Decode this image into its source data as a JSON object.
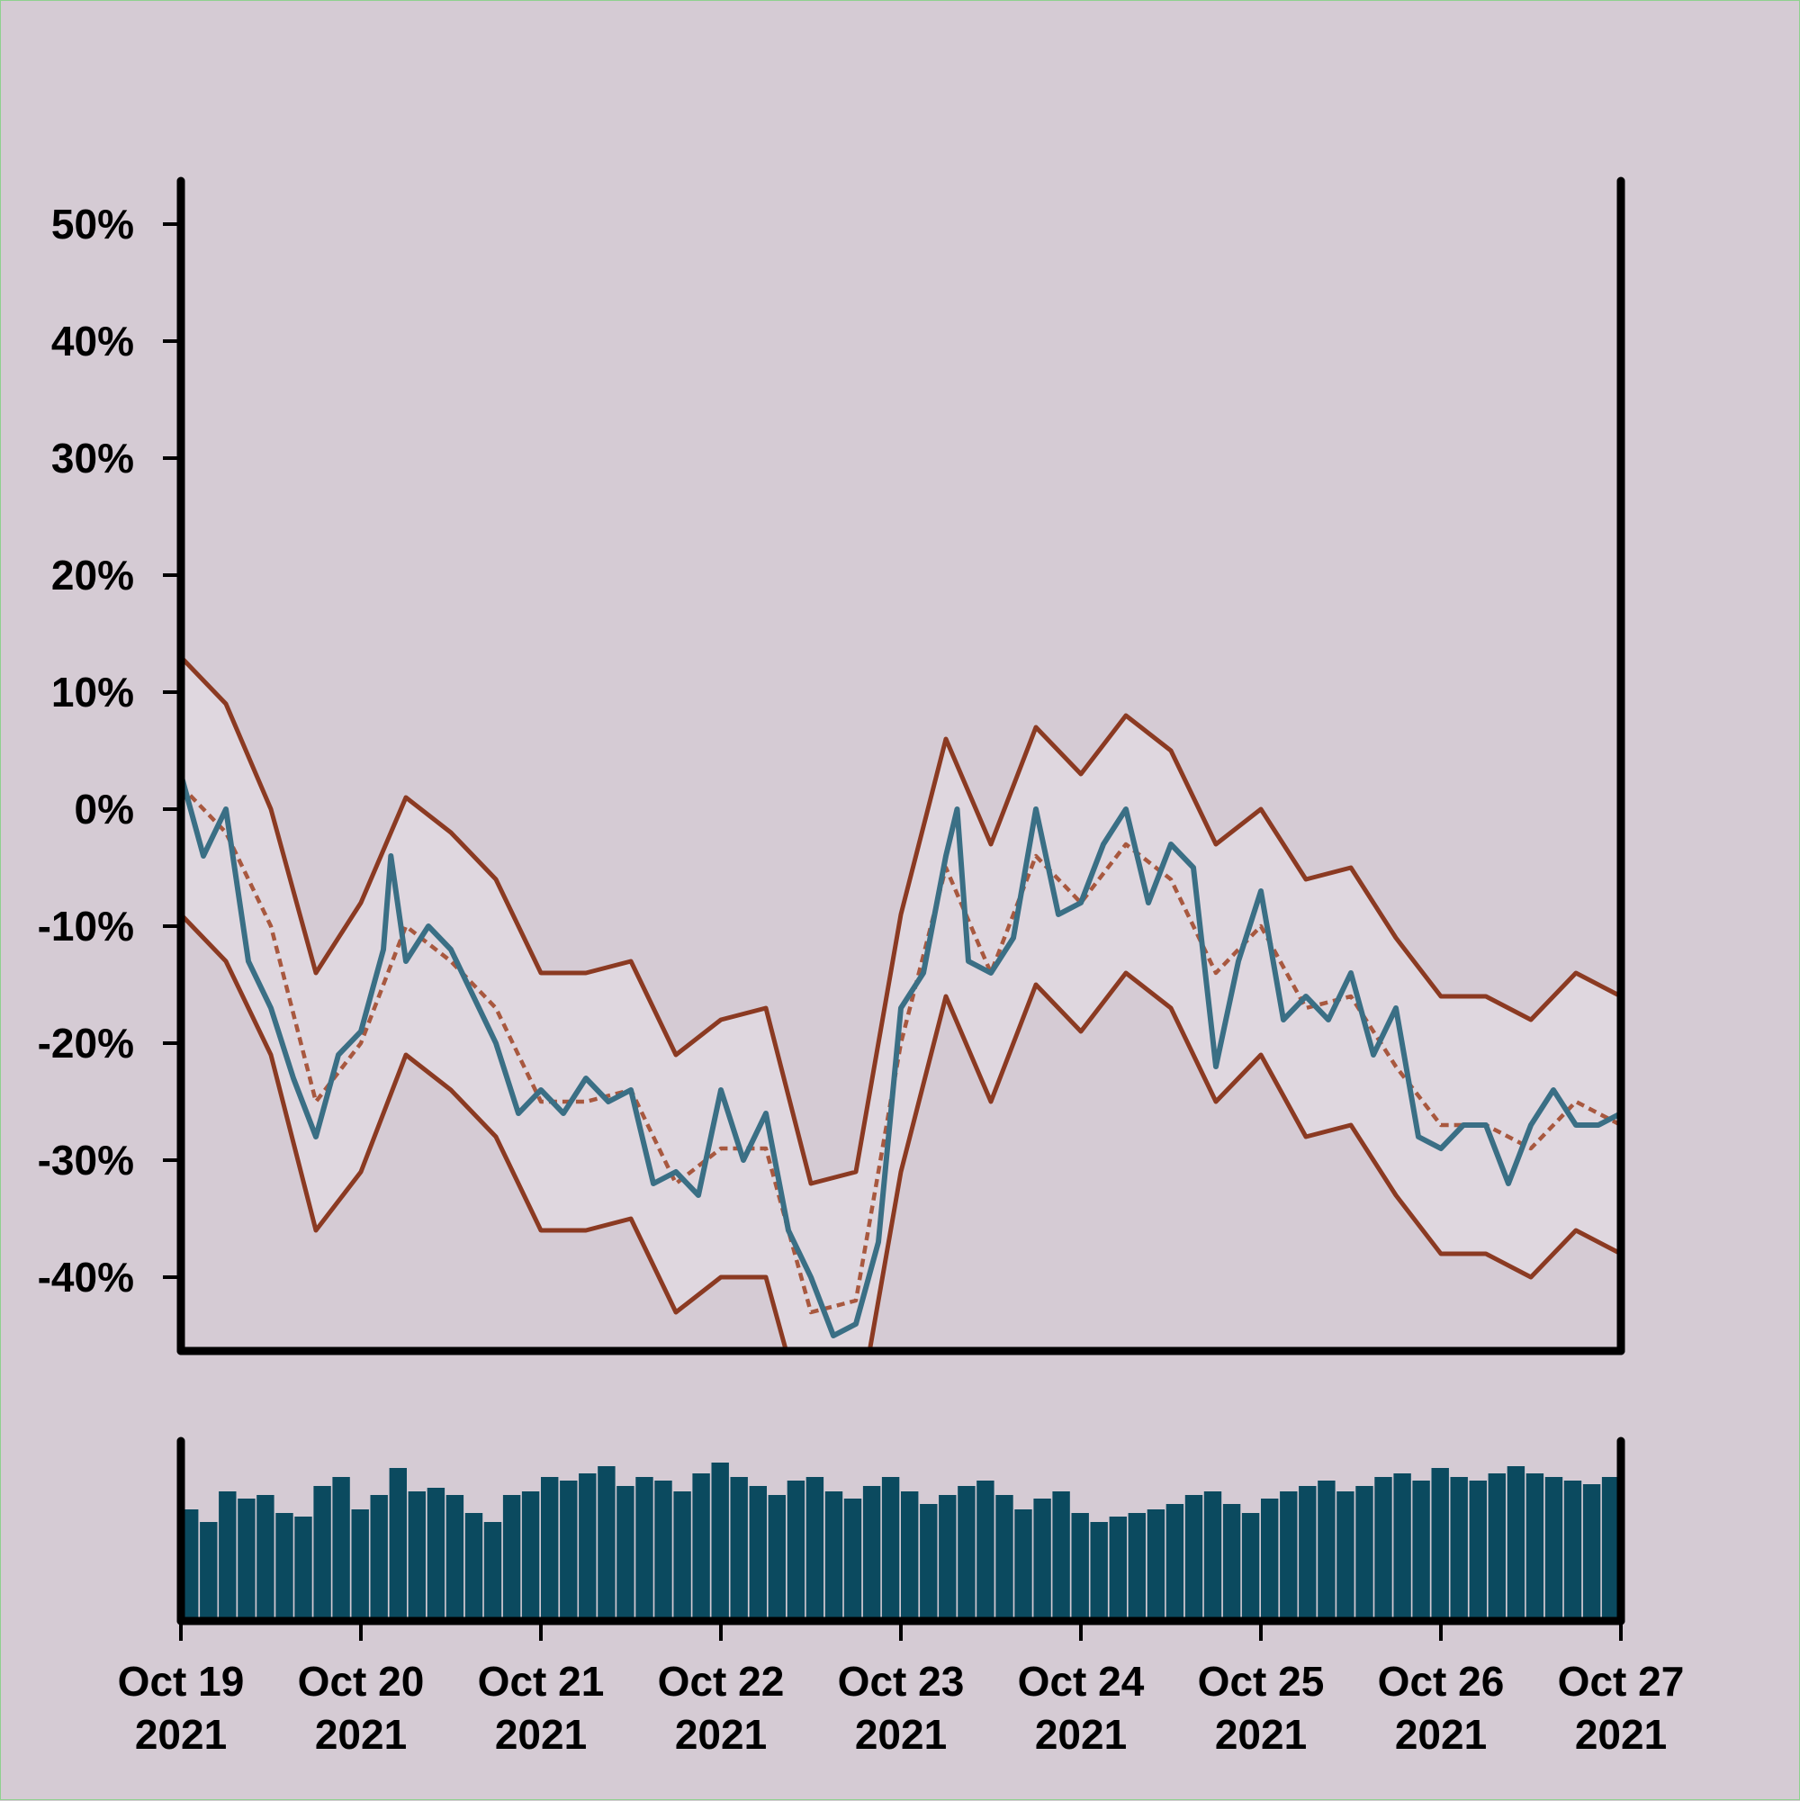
{
  "chart_data": [
    {
      "type": "line",
      "title": "",
      "xlabel": "",
      "ylabel": "",
      "x_range": [
        "2021-10-19",
        "2021-10-27"
      ],
      "ylim": [
        -46,
        54
      ],
      "y_ticks": [
        {
          "value": 50,
          "label": "50%"
        },
        {
          "value": 40,
          "label": "40%"
        },
        {
          "value": 30,
          "label": "30%"
        },
        {
          "value": 20,
          "label": "20%"
        },
        {
          "value": 10,
          "label": "10%"
        },
        {
          "value": 0,
          "label": "0%"
        },
        {
          "value": -10,
          "label": "-10%"
        },
        {
          "value": -20,
          "label": "-20%"
        },
        {
          "value": -30,
          "label": "-30%"
        },
        {
          "value": -40,
          "label": "-40%"
        }
      ],
      "grid": false,
      "legend": "none",
      "colors": {
        "price": "#3a6f85",
        "bands": "#8b3a22",
        "middle": "#a8583f",
        "band_fill": "#e1d9e0"
      },
      "band_points": [
        {
          "x": "2021-10-19T00:00",
          "mid": 2,
          "upper": 13,
          "lower": -9
        },
        {
          "x": "2021-10-19T06:00",
          "mid": -2,
          "upper": 9,
          "lower": -13
        },
        {
          "x": "2021-10-19T12:00",
          "mid": -10,
          "upper": 0,
          "lower": -21
        },
        {
          "x": "2021-10-19T18:00",
          "mid": -25,
          "upper": -14,
          "lower": -36
        },
        {
          "x": "2021-10-20T00:00",
          "mid": -20,
          "upper": -8,
          "lower": -31
        },
        {
          "x": "2021-10-20T06:00",
          "mid": -10,
          "upper": 1,
          "lower": -21
        },
        {
          "x": "2021-10-20T12:00",
          "mid": -13,
          "upper": -2,
          "lower": -24
        },
        {
          "x": "2021-10-20T18:00",
          "mid": -17,
          "upper": -6,
          "lower": -28
        },
        {
          "x": "2021-10-21T00:00",
          "mid": -25,
          "upper": -14,
          "lower": -36
        },
        {
          "x": "2021-10-21T06:00",
          "mid": -25,
          "upper": -14,
          "lower": -36
        },
        {
          "x": "2021-10-21T12:00",
          "mid": -24,
          "upper": -13,
          "lower": -35
        },
        {
          "x": "2021-10-21T18:00",
          "mid": -32,
          "upper": -21,
          "lower": -43
        },
        {
          "x": "2021-10-22T00:00",
          "mid": -29,
          "upper": -18,
          "lower": -40
        },
        {
          "x": "2021-10-22T06:00",
          "mid": -29,
          "upper": -17,
          "lower": -40
        },
        {
          "x": "2021-10-22T12:00",
          "mid": -43,
          "upper": -32,
          "lower": -54
        },
        {
          "x": "2021-10-22T18:00",
          "mid": -42,
          "upper": -31,
          "lower": -53
        },
        {
          "x": "2021-10-23T00:00",
          "mid": -20,
          "upper": -9,
          "lower": -31
        },
        {
          "x": "2021-10-23T06:00",
          "mid": -5,
          "upper": 6,
          "lower": -16
        },
        {
          "x": "2021-10-23T12:00",
          "mid": -14,
          "upper": -3,
          "lower": -25
        },
        {
          "x": "2021-10-23T18:00",
          "mid": -4,
          "upper": 7,
          "lower": -15
        },
        {
          "x": "2021-10-24T00:00",
          "mid": -8,
          "upper": 3,
          "lower": -19
        },
        {
          "x": "2021-10-24T06:00",
          "mid": -3,
          "upper": 8,
          "lower": -14
        },
        {
          "x": "2021-10-24T12:00",
          "mid": -6,
          "upper": 5,
          "lower": -17
        },
        {
          "x": "2021-10-24T18:00",
          "mid": -14,
          "upper": -3,
          "lower": -25
        },
        {
          "x": "2021-10-25T00:00",
          "mid": -10,
          "upper": 0,
          "lower": -21
        },
        {
          "x": "2021-10-25T06:00",
          "mid": -17,
          "upper": -6,
          "lower": -28
        },
        {
          "x": "2021-10-25T12:00",
          "mid": -16,
          "upper": -5,
          "lower": -27
        },
        {
          "x": "2021-10-25T18:00",
          "mid": -22,
          "upper": -11,
          "lower": -33
        },
        {
          "x": "2021-10-26T00:00",
          "mid": -27,
          "upper": -16,
          "lower": -38
        },
        {
          "x": "2021-10-26T06:00",
          "mid": -27,
          "upper": -16,
          "lower": -38
        },
        {
          "x": "2021-10-26T12:00",
          "mid": -29,
          "upper": -18,
          "lower": -40
        },
        {
          "x": "2021-10-26T18:00",
          "mid": -25,
          "upper": -14,
          "lower": -36
        },
        {
          "x": "2021-10-27T00:00",
          "mid": -27,
          "upper": -16,
          "lower": -38
        }
      ],
      "price_points": [
        {
          "x": "2021-10-19T00:00",
          "y": 3
        },
        {
          "x": "2021-10-19T03:00",
          "y": -4
        },
        {
          "x": "2021-10-19T06:00",
          "y": 0
        },
        {
          "x": "2021-10-19T09:00",
          "y": -13
        },
        {
          "x": "2021-10-19T12:00",
          "y": -17
        },
        {
          "x": "2021-10-19T15:00",
          "y": -23
        },
        {
          "x": "2021-10-19T18:00",
          "y": -28
        },
        {
          "x": "2021-10-19T21:00",
          "y": -21
        },
        {
          "x": "2021-10-20T00:00",
          "y": -19
        },
        {
          "x": "2021-10-20T03:00",
          "y": -12
        },
        {
          "x": "2021-10-20T04:00",
          "y": -4
        },
        {
          "x": "2021-10-20T06:00",
          "y": -13
        },
        {
          "x": "2021-10-20T09:00",
          "y": -10
        },
        {
          "x": "2021-10-20T12:00",
          "y": -12
        },
        {
          "x": "2021-10-20T15:00",
          "y": -16
        },
        {
          "x": "2021-10-20T18:00",
          "y": -20
        },
        {
          "x": "2021-10-20T21:00",
          "y": -26
        },
        {
          "x": "2021-10-21T00:00",
          "y": -24
        },
        {
          "x": "2021-10-21T03:00",
          "y": -26
        },
        {
          "x": "2021-10-21T06:00",
          "y": -23
        },
        {
          "x": "2021-10-21T09:00",
          "y": -25
        },
        {
          "x": "2021-10-21T12:00",
          "y": -24
        },
        {
          "x": "2021-10-21T15:00",
          "y": -32
        },
        {
          "x": "2021-10-21T18:00",
          "y": -31
        },
        {
          "x": "2021-10-21T21:00",
          "y": -33
        },
        {
          "x": "2021-10-22T00:00",
          "y": -24
        },
        {
          "x": "2021-10-22T03:00",
          "y": -30
        },
        {
          "x": "2021-10-22T06:00",
          "y": -26
        },
        {
          "x": "2021-10-22T09:00",
          "y": -36
        },
        {
          "x": "2021-10-22T12:00",
          "y": -40
        },
        {
          "x": "2021-10-22T15:00",
          "y": -45
        },
        {
          "x": "2021-10-22T18:00",
          "y": -44
        },
        {
          "x": "2021-10-22T21:00",
          "y": -37
        },
        {
          "x": "2021-10-23T00:00",
          "y": -17
        },
        {
          "x": "2021-10-23T03:00",
          "y": -14
        },
        {
          "x": "2021-10-23T06:00",
          "y": -4
        },
        {
          "x": "2021-10-23T07:30",
          "y": 0
        },
        {
          "x": "2021-10-23T09:00",
          "y": -13
        },
        {
          "x": "2021-10-23T12:00",
          "y": -14
        },
        {
          "x": "2021-10-23T15:00",
          "y": -11
        },
        {
          "x": "2021-10-23T18:00",
          "y": 0
        },
        {
          "x": "2021-10-23T21:00",
          "y": -9
        },
        {
          "x": "2021-10-24T00:00",
          "y": -8
        },
        {
          "x": "2021-10-24T03:00",
          "y": -3
        },
        {
          "x": "2021-10-24T06:00",
          "y": 0
        },
        {
          "x": "2021-10-24T09:00",
          "y": -8
        },
        {
          "x": "2021-10-24T12:00",
          "y": -3
        },
        {
          "x": "2021-10-24T15:00",
          "y": -5
        },
        {
          "x": "2021-10-24T18:00",
          "y": -22
        },
        {
          "x": "2021-10-24T21:00",
          "y": -13
        },
        {
          "x": "2021-10-25T00:00",
          "y": -7
        },
        {
          "x": "2021-10-25T03:00",
          "y": -18
        },
        {
          "x": "2021-10-25T06:00",
          "y": -16
        },
        {
          "x": "2021-10-25T09:00",
          "y": -18
        },
        {
          "x": "2021-10-25T12:00",
          "y": -14
        },
        {
          "x": "2021-10-25T15:00",
          "y": -21
        },
        {
          "x": "2021-10-25T18:00",
          "y": -17
        },
        {
          "x": "2021-10-25T21:00",
          "y": -28
        },
        {
          "x": "2021-10-26T00:00",
          "y": -29
        },
        {
          "x": "2021-10-26T03:00",
          "y": -27
        },
        {
          "x": "2021-10-26T06:00",
          "y": -27
        },
        {
          "x": "2021-10-26T09:00",
          "y": -32
        },
        {
          "x": "2021-10-26T12:00",
          "y": -27
        },
        {
          "x": "2021-10-26T15:00",
          "y": -24
        },
        {
          "x": "2021-10-26T18:00",
          "y": -27
        },
        {
          "x": "2021-10-26T21:00",
          "y": -27
        },
        {
          "x": "2021-10-27T00:00",
          "y": -26
        }
      ]
    },
    {
      "type": "bar",
      "title": "",
      "xlabel": "",
      "ylabel": "",
      "ylim": [
        0,
        1
      ],
      "grid": false,
      "bar_color": "#0b4a5f",
      "x_ticks": [
        {
          "line1": "Oct 19",
          "line2": "2021"
        },
        {
          "line1": "Oct 20",
          "line2": "2021"
        },
        {
          "line1": "Oct 21",
          "line2": "2021"
        },
        {
          "line1": "Oct 22",
          "line2": "2021"
        },
        {
          "line1": "Oct 23",
          "line2": "2021"
        },
        {
          "line1": "Oct 24",
          "line2": "2021"
        },
        {
          "line1": "Oct 25",
          "line2": "2021"
        },
        {
          "line1": "Oct 26",
          "line2": "2021"
        },
        {
          "line1": "Oct 27",
          "line2": "2021"
        }
      ],
      "values": [
        0.62,
        0.55,
        0.72,
        0.68,
        0.7,
        0.6,
        0.58,
        0.75,
        0.8,
        0.62,
        0.7,
        0.85,
        0.72,
        0.74,
        0.7,
        0.6,
        0.55,
        0.7,
        0.72,
        0.8,
        0.78,
        0.82,
        0.86,
        0.75,
        0.8,
        0.78,
        0.72,
        0.82,
        0.88,
        0.8,
        0.75,
        0.7,
        0.78,
        0.8,
        0.72,
        0.68,
        0.75,
        0.8,
        0.72,
        0.65,
        0.7,
        0.75,
        0.78,
        0.7,
        0.62,
        0.68,
        0.72,
        0.6,
        0.55,
        0.58,
        0.6,
        0.62,
        0.65,
        0.7,
        0.72,
        0.65,
        0.6,
        0.68,
        0.72,
        0.75,
        0.78,
        0.72,
        0.75,
        0.8,
        0.82,
        0.78,
        0.85,
        0.8,
        0.78,
        0.82,
        0.86,
        0.82,
        0.8,
        0.78,
        0.76,
        0.8
      ]
    }
  ]
}
